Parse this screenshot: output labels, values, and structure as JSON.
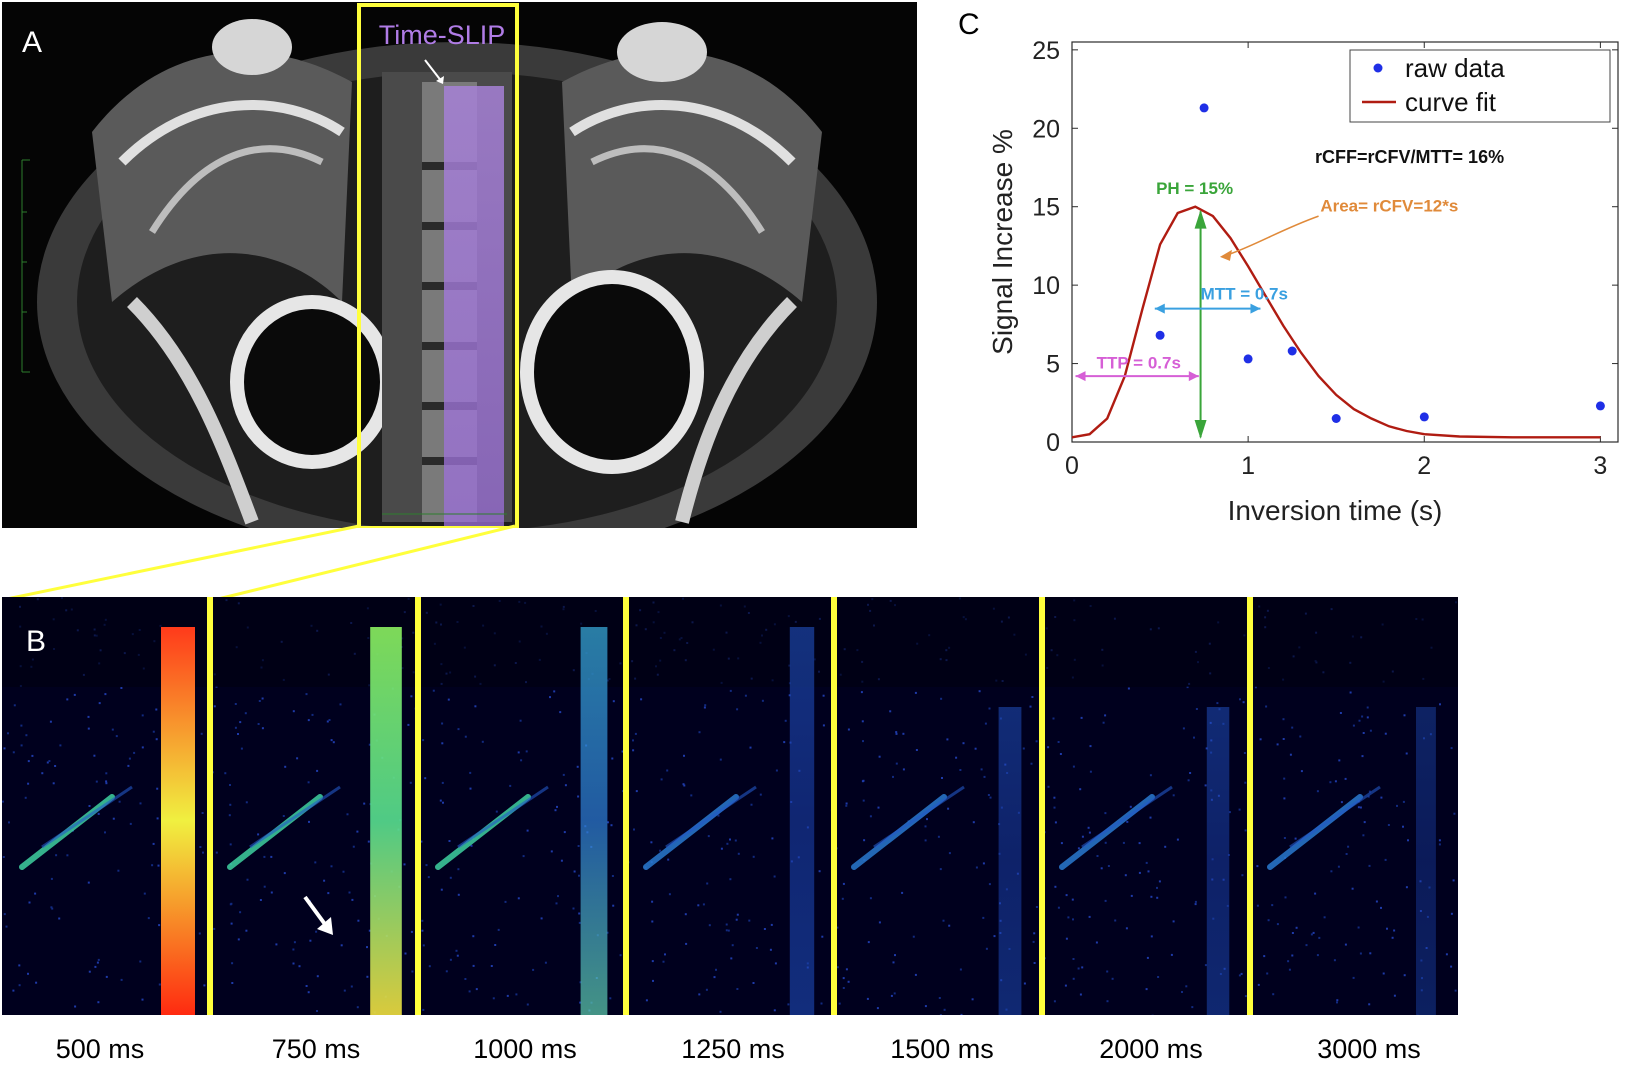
{
  "panel_a": {
    "letter": "A",
    "region_label": "Time-SLIP",
    "colors": {
      "tag": "#b07ce6",
      "box": "#ffff3c"
    }
  },
  "panel_b": {
    "letter": "B",
    "frames": [
      {
        "label": "500 ms",
        "intensity": 1.0
      },
      {
        "label": "750 ms",
        "intensity": 0.85
      },
      {
        "label": "1000 ms",
        "intensity": 0.55
      },
      {
        "label": "1250 ms",
        "intensity": 0.4
      },
      {
        "label": "1500 ms",
        "intensity": 0.3
      },
      {
        "label": "2000 ms",
        "intensity": 0.28
      },
      {
        "label": "3000 ms",
        "intensity": 0.12
      }
    ]
  },
  "panel_c": {
    "letter": "C",
    "annotations": {
      "rcff": "rCFF=rCFV/MTT= 16%",
      "ph": "PH = 15%",
      "area": "Area= rCFV=12*s",
      "mtt": "MTT = 0.7s",
      "ttp": "TTP = 0.7s"
    }
  },
  "chart_data": {
    "type": "scatter",
    "title": "",
    "xlabel": "Inversion time (s)",
    "ylabel": "Signal Increase %",
    "xlim": [
      0,
      3.1
    ],
    "ylim": [
      0,
      25.5
    ],
    "xticks": [
      0,
      1,
      2,
      3
    ],
    "yticks": [
      0,
      5,
      10,
      15,
      20,
      25
    ],
    "legend": [
      "raw data",
      "curve fit"
    ],
    "legend_position": "top-right",
    "series": [
      {
        "name": "raw data",
        "kind": "points",
        "color": "#1f2fe6",
        "x": [
          0.5,
          0.75,
          1.0,
          1.25,
          1.5,
          2.0,
          3.0
        ],
        "y": [
          6.8,
          21.3,
          5.3,
          5.8,
          1.5,
          1.6,
          2.3
        ]
      },
      {
        "name": "curve fit",
        "kind": "line",
        "color": "#b01c12",
        "x": [
          0,
          0.1,
          0.2,
          0.3,
          0.4,
          0.5,
          0.6,
          0.7,
          0.8,
          0.9,
          1.0,
          1.1,
          1.2,
          1.3,
          1.4,
          1.5,
          1.6,
          1.7,
          1.8,
          1.9,
          2.0,
          2.2,
          2.5,
          3.0
        ],
        "y": [
          0.3,
          0.5,
          1.5,
          4.2,
          8.5,
          12.6,
          14.6,
          15.0,
          14.4,
          13.0,
          11.2,
          9.3,
          7.4,
          5.7,
          4.2,
          3.0,
          2.1,
          1.5,
          1.0,
          0.7,
          0.5,
          0.35,
          0.3,
          0.3
        ]
      }
    ]
  }
}
